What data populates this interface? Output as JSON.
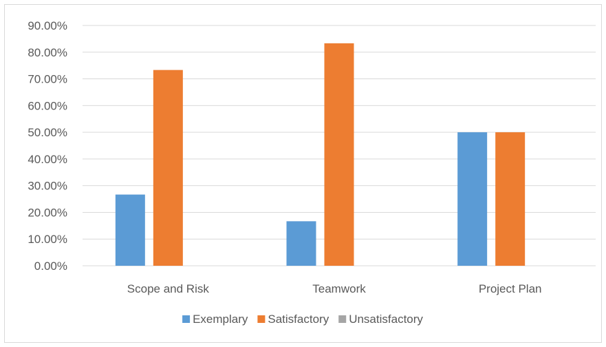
{
  "chart_data": {
    "type": "bar",
    "categories": [
      "Scope and Risk",
      "Teamwork",
      "Project Plan"
    ],
    "series": [
      {
        "name": "Exemplary",
        "color": "#5b9bd5",
        "values": [
          0.2667,
          0.1667,
          0.5
        ]
      },
      {
        "name": "Satisfactory",
        "color": "#ed7d31",
        "values": [
          0.7333,
          0.8333,
          0.5
        ]
      },
      {
        "name": "Unsatisfactory",
        "color": "#a5a5a5",
        "values": [
          0,
          0,
          0
        ]
      }
    ],
    "ylim": [
      0,
      0.9
    ],
    "yticks": [
      0,
      0.1,
      0.2,
      0.3,
      0.4,
      0.5,
      0.6,
      0.7,
      0.8,
      0.9
    ],
    "ytick_labels": [
      "0.00%",
      "10.00%",
      "20.00%",
      "30.00%",
      "40.00%",
      "50.00%",
      "60.00%",
      "70.00%",
      "80.00%",
      "90.00%"
    ],
    "grid": true,
    "legend_position": "bottom",
    "title": "",
    "xlabel": "",
    "ylabel": ""
  }
}
